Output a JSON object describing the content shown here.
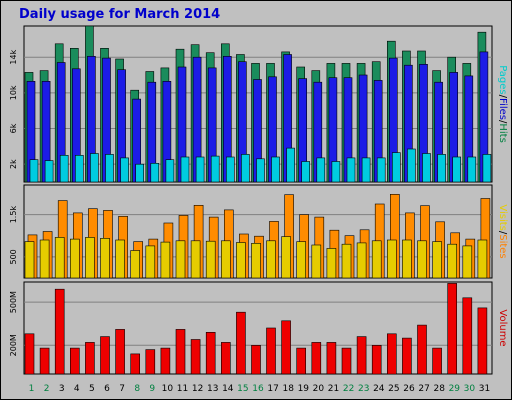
{
  "chart_data": {
    "type": "bar",
    "title": "Daily usage for March 2014",
    "categories": [
      "1",
      "2",
      "3",
      "4",
      "5",
      "6",
      "7",
      "8",
      "9",
      "10",
      "11",
      "12",
      "13",
      "14",
      "15",
      "16",
      "17",
      "18",
      "19",
      "20",
      "21",
      "22",
      "23",
      "24",
      "25",
      "26",
      "27",
      "28",
      "29",
      "30",
      "31"
    ],
    "weekend_days": [
      "1",
      "2",
      "8",
      "9",
      "15",
      "16",
      "22",
      "23",
      "29",
      "30"
    ],
    "panels": [
      {
        "id": "hits",
        "ylabel": [
          "Pages",
          "/",
          "Files",
          "/",
          "Hits"
        ],
        "ylabel_colors": [
          "#00cccc",
          "#000000",
          "#0000cc",
          "#000000",
          "#008040"
        ],
        "y_ticks": [
          {
            "value": 2000,
            "label": "2k"
          },
          {
            "value": 6000,
            "label": "6k"
          },
          {
            "value": 10000,
            "label": "10k"
          },
          {
            "value": 14000,
            "label": "14k"
          }
        ],
        "ylim": [
          0,
          17500
        ],
        "series": [
          {
            "name": "Hits",
            "color": "#1a8c5c",
            "values": [
              12300,
              12500,
              15500,
              15000,
              17500,
              15000,
              13800,
              10300,
              12400,
              12800,
              14900,
              15400,
              14500,
              15500,
              14300,
              13300,
              13300,
              14600,
              12900,
              12500,
              13300,
              13300,
              13300,
              13500,
              15800,
              14700,
              14700,
              12500,
              14000,
              13300,
              16800
            ]
          },
          {
            "name": "Files",
            "color": "#1c1ce6",
            "values": [
              11300,
              11300,
              13400,
              12700,
              14100,
              13900,
              12600,
              9300,
              11200,
              11300,
              12900,
              14000,
              12800,
              14100,
              13500,
              11500,
              11800,
              14300,
              11600,
              11200,
              11700,
              11700,
              12000,
              11400,
              13900,
              13100,
              13200,
              11200,
              12300,
              11900,
              14600
            ]
          },
          {
            "name": "Pages",
            "color": "#00cce0",
            "values": [
              2500,
              2400,
              3000,
              3000,
              3200,
              3100,
              2700,
              2000,
              2100,
              2500,
              2800,
              2800,
              2900,
              2800,
              3100,
              2600,
              2800,
              3800,
              2300,
              2700,
              2300,
              2700,
              2700,
              2700,
              3300,
              3700,
              3200,
              3100,
              2800,
              2800,
              3100
            ]
          }
        ]
      },
      {
        "id": "visits",
        "ylabel": [
          "Visits",
          "/",
          "Sites"
        ],
        "ylabel_colors": [
          "#e6cc00",
          "#000000",
          "#ff8000"
        ],
        "y_ticks": [
          {
            "value": 500,
            "label": "500"
          },
          {
            "value": 1500,
            "label": "1.5k"
          }
        ],
        "ylim": [
          0,
          2200
        ],
        "series": [
          {
            "name": "Sites",
            "color": "#ff8c00",
            "values": [
              1020,
              1100,
              1830,
              1540,
              1640,
              1600,
              1460,
              860,
              920,
              1300,
              1480,
              1720,
              1440,
              1610,
              1040,
              990,
              1340,
              1970,
              1500,
              1440,
              1130,
              1000,
              1140,
              1750,
              1980,
              1540,
              1710,
              1330,
              1070,
              920,
              1880
            ]
          },
          {
            "name": "Visits",
            "color": "#e6cc00",
            "values": [
              860,
              900,
              960,
              920,
              960,
              940,
              900,
              650,
              760,
              850,
              880,
              880,
              870,
              880,
              840,
              820,
              880,
              980,
              860,
              780,
              700,
              800,
              830,
              880,
              900,
              900,
              880,
              860,
              800,
              760,
              900
            ]
          }
        ]
      },
      {
        "id": "volume",
        "ylabel": [
          "Volume"
        ],
        "ylabel_colors": [
          "#cc0000"
        ],
        "y_ticks": [
          {
            "value": 200,
            "label": "200M"
          },
          {
            "value": 500,
            "label": "500M"
          }
        ],
        "ylim": [
          0,
          640
        ],
        "series": [
          {
            "name": "Volume",
            "color": "#ee0000",
            "values": [
              280,
              180,
              590,
              180,
              220,
              260,
              310,
              140,
              170,
              180,
              310,
              240,
              290,
              220,
              430,
              200,
              320,
              370,
              180,
              220,
              220,
              180,
              260,
              200,
              280,
              250,
              340,
              180,
              630,
              530,
              460
            ]
          }
        ]
      }
    ]
  }
}
